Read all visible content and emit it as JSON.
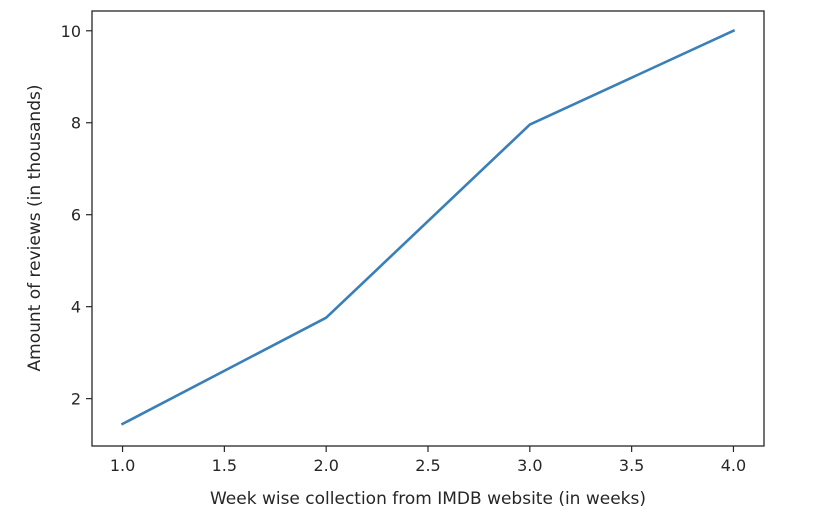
{
  "chart_data": {
    "type": "line",
    "title": "",
    "xlabel": "Week wise collection from IMDB website (in weeks)",
    "ylabel": "Amount of reviews (in thousands)",
    "xlim": [
      0.85,
      4.15
    ],
    "ylim": [
      0.97,
      10.43
    ],
    "xticks": [
      1.0,
      1.5,
      2.0,
      2.5,
      3.0,
      3.5,
      4.0
    ],
    "xtick_labels": [
      "1.0",
      "1.5",
      "2.0",
      "2.5",
      "3.0",
      "3.5",
      "4.0"
    ],
    "yticks": [
      2,
      4,
      6,
      8,
      10
    ],
    "ytick_labels": [
      "2",
      "4",
      "6",
      "8",
      "10"
    ],
    "grid": false,
    "series": [
      {
        "color": "#3a7fb8",
        "x": [
          1.0,
          2.0,
          3.0,
          4.0
        ],
        "y": [
          1.45,
          3.76,
          7.96,
          10.0
        ]
      }
    ]
  }
}
